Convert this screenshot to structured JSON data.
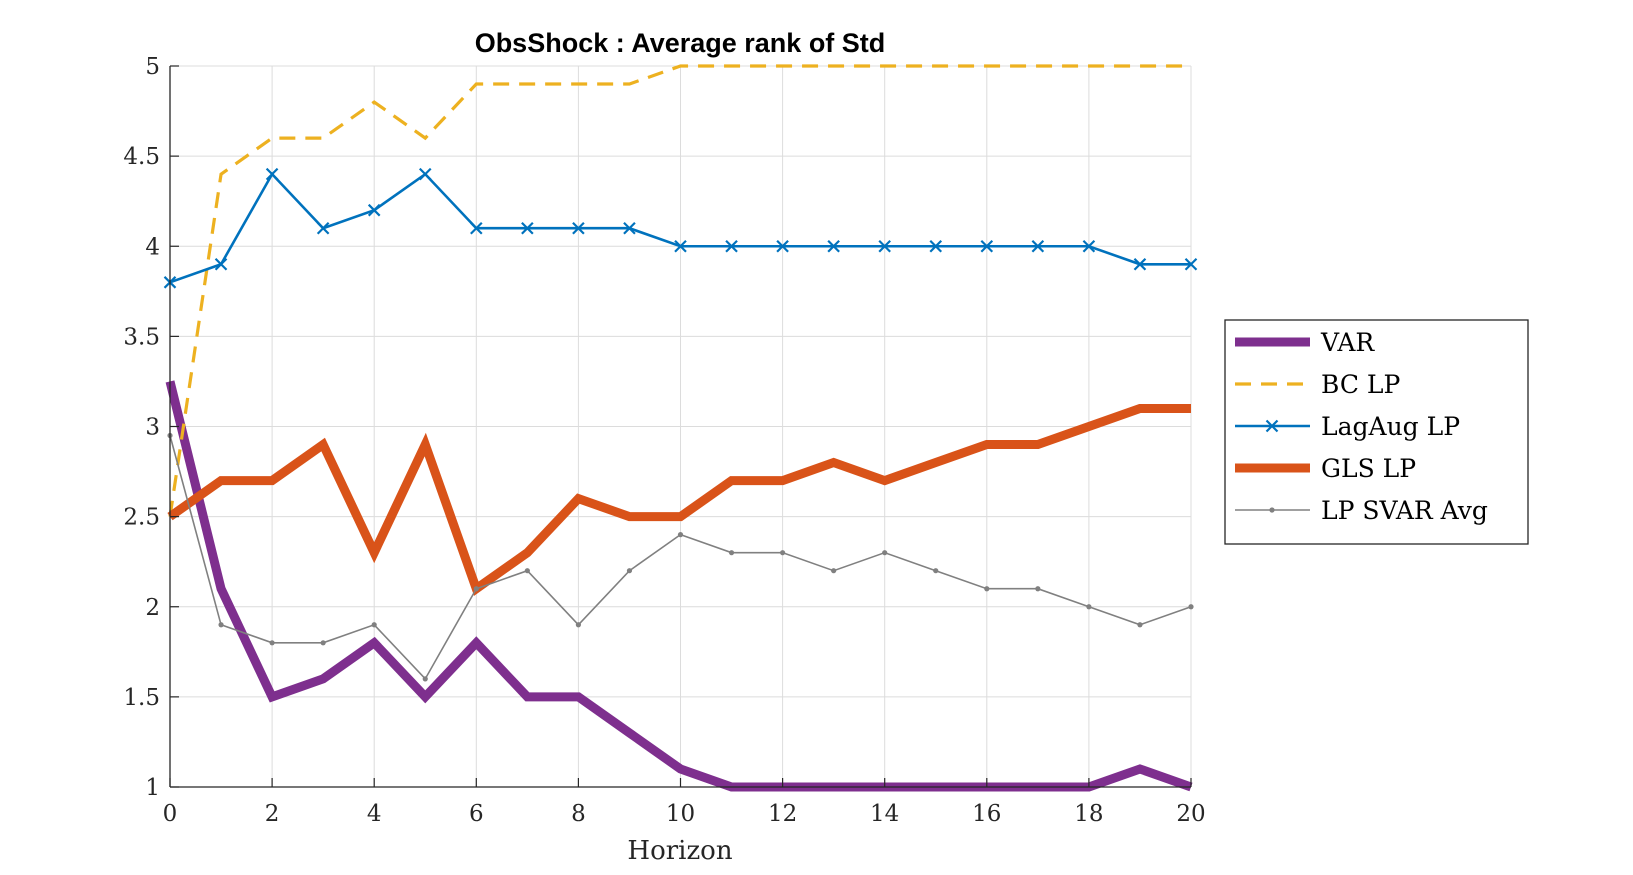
{
  "chart_data": {
    "type": "line",
    "title": "ObsShock : Average rank of Std",
    "xlabel": "Horizon",
    "ylabel": "",
    "xlim": [
      0,
      20
    ],
    "ylim": [
      1,
      5
    ],
    "xticks": [
      0,
      2,
      4,
      6,
      8,
      10,
      12,
      14,
      16,
      18,
      20
    ],
    "yticks": [
      1,
      1.5,
      2,
      2.5,
      3,
      3.5,
      4,
      4.5,
      5
    ],
    "xtick_labels": [
      "0",
      "2",
      "4",
      "6",
      "8",
      "10",
      "12",
      "14",
      "16",
      "18",
      "20"
    ],
    "ytick_labels": [
      "1",
      "1.5",
      "2",
      "2.5",
      "3",
      "3.5",
      "4",
      "4.5",
      "5"
    ],
    "grid": true,
    "legend_position": "right",
    "x": [
      0,
      1,
      2,
      3,
      4,
      5,
      6,
      7,
      8,
      9,
      10,
      11,
      12,
      13,
      14,
      15,
      16,
      17,
      18,
      19,
      20
    ],
    "series": [
      {
        "name": "VAR",
        "color": "#7E2F8E",
        "style": "solid-thick",
        "marker": "none",
        "values": [
          3.25,
          2.1,
          1.5,
          1.6,
          1.8,
          1.5,
          1.8,
          1.5,
          1.5,
          1.3,
          1.1,
          1.0,
          1.0,
          1.0,
          1.0,
          1.0,
          1.0,
          1.0,
          1.0,
          1.1,
          1.0
        ]
      },
      {
        "name": "BC LP",
        "color": "#EDB120",
        "style": "dashed",
        "marker": "none",
        "values": [
          2.5,
          4.4,
          4.6,
          4.6,
          4.8,
          4.6,
          4.9,
          4.9,
          4.9,
          4.9,
          5.0,
          5.0,
          5.0,
          5.0,
          5.0,
          5.0,
          5.0,
          5.0,
          5.0,
          5.0,
          5.0
        ]
      },
      {
        "name": "LagAug LP",
        "color": "#0072BD",
        "style": "solid",
        "marker": "x",
        "values": [
          3.8,
          3.9,
          4.4,
          4.1,
          4.2,
          4.4,
          4.1,
          4.1,
          4.1,
          4.1,
          4.0,
          4.0,
          4.0,
          4.0,
          4.0,
          4.0,
          4.0,
          4.0,
          4.0,
          3.9,
          3.9
        ]
      },
      {
        "name": "GLS LP",
        "color": "#D95319",
        "style": "solid-thick",
        "marker": "none",
        "values": [
          2.5,
          2.7,
          2.7,
          2.9,
          2.3,
          2.9,
          2.1,
          2.3,
          2.6,
          2.5,
          2.5,
          2.7,
          2.7,
          2.8,
          2.7,
          2.8,
          2.9,
          2.9,
          3.0,
          3.1,
          3.1
        ]
      },
      {
        "name": "LP SVAR Avg",
        "color": "#808080",
        "style": "solid-thin",
        "marker": "dot",
        "values": [
          2.95,
          1.9,
          1.8,
          1.8,
          1.9,
          1.6,
          2.1,
          2.2,
          1.9,
          2.2,
          2.4,
          2.3,
          2.3,
          2.2,
          2.3,
          2.2,
          2.1,
          2.1,
          2.0,
          1.9,
          2.0
        ]
      }
    ]
  }
}
